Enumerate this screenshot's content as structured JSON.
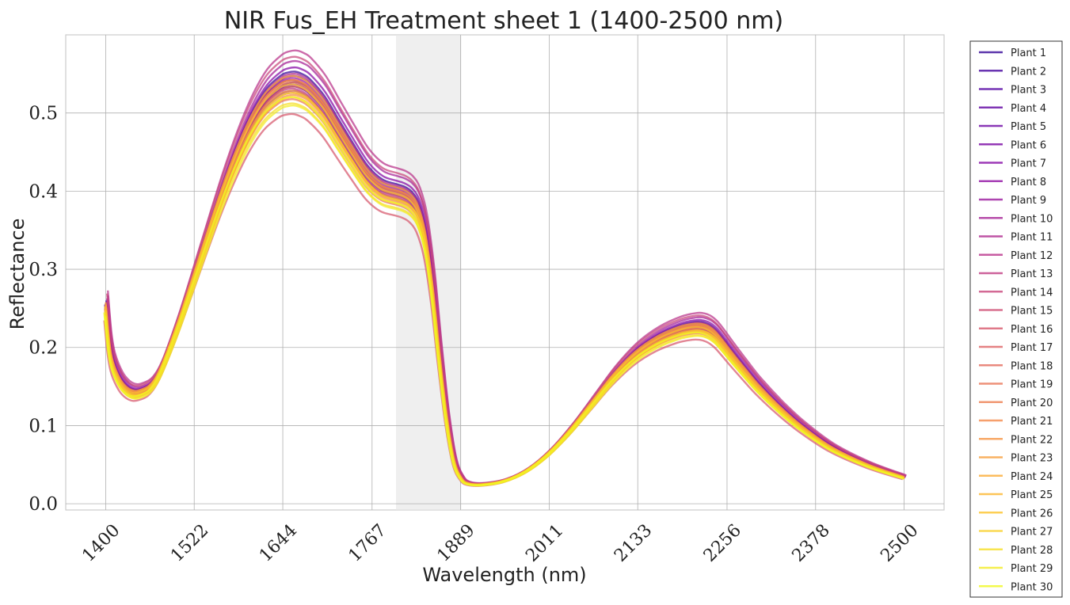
{
  "chart_data": {
    "type": "line",
    "title": "NIR Fus_EH Treatment sheet 1 (1400-2500 nm)",
    "xlabel": "Wavelength (nm)",
    "ylabel": "Reflectance",
    "xlim": [
      1345,
      2555
    ],
    "ylim": [
      -0.008,
      0.6
    ],
    "xticks": [
      1400,
      1522,
      1644,
      1767,
      1889,
      2011,
      2133,
      2256,
      2378,
      2500
    ],
    "xtick_labels": [
      "1400",
      "1522",
      "1644",
      "1767",
      "1889",
      "2011",
      "2133",
      "2256",
      "2378",
      "2500"
    ],
    "yticks": [
      0.0,
      0.1,
      0.2,
      0.3,
      0.4,
      0.5
    ],
    "ytick_labels": [
      "0.0",
      "0.1",
      "0.2",
      "0.3",
      "0.4",
      "0.5"
    ],
    "grid": true,
    "legend_position": "outside-right",
    "shaded_band": [
      1800,
      1890
    ],
    "colormap": "plasma",
    "base_curve": {
      "x": [
        1400,
        1405,
        1410,
        1420,
        1430,
        1440,
        1450,
        1460,
        1470,
        1480,
        1500,
        1520,
        1540,
        1560,
        1580,
        1600,
        1620,
        1640,
        1650,
        1660,
        1670,
        1680,
        1700,
        1720,
        1740,
        1760,
        1780,
        1800,
        1810,
        1820,
        1830,
        1840,
        1850,
        1860,
        1870,
        1880,
        1890,
        1900,
        1920,
        1950,
        1980,
        2010,
        2040,
        2070,
        2100,
        2130,
        2160,
        2190,
        2210,
        2220,
        2230,
        2240,
        2250,
        2260,
        2280,
        2300,
        2330,
        2360,
        2400,
        2450,
        2500
      ],
      "y": [
        0.255,
        0.205,
        0.18,
        0.158,
        0.147,
        0.143,
        0.145,
        0.15,
        0.162,
        0.182,
        0.232,
        0.288,
        0.345,
        0.4,
        0.449,
        0.49,
        0.52,
        0.537,
        0.541,
        0.542,
        0.539,
        0.533,
        0.512,
        0.482,
        0.452,
        0.424,
        0.407,
        0.401,
        0.398,
        0.392,
        0.378,
        0.345,
        0.28,
        0.19,
        0.11,
        0.055,
        0.033,
        0.026,
        0.025,
        0.03,
        0.043,
        0.065,
        0.095,
        0.13,
        0.165,
        0.193,
        0.212,
        0.224,
        0.228,
        0.228,
        0.225,
        0.218,
        0.207,
        0.195,
        0.172,
        0.15,
        0.122,
        0.098,
        0.072,
        0.05,
        0.034
      ]
    },
    "series": [
      {
        "name": "Plant 1",
        "scale": 1.02,
        "dx": 1
      },
      {
        "name": "Plant 2",
        "scale": 0.985,
        "dx": 0
      },
      {
        "name": "Plant 3",
        "scale": 0.995,
        "dx": 2
      },
      {
        "name": "Plant 4",
        "scale": 1.0,
        "dx": -1
      },
      {
        "name": "Plant 5",
        "scale": 1.01,
        "dx": 1
      },
      {
        "name": "Plant 6",
        "scale": 0.975,
        "dx": 0
      },
      {
        "name": "Plant 7",
        "scale": 1.03,
        "dx": 2
      },
      {
        "name": "Plant 8",
        "scale": 0.99,
        "dx": 1
      },
      {
        "name": "Plant 9",
        "scale": 1.005,
        "dx": 0
      },
      {
        "name": "Plant 10",
        "scale": 1.045,
        "dx": 3
      },
      {
        "name": "Plant 11",
        "scale": 1.015,
        "dx": 1
      },
      {
        "name": "Plant 12",
        "scale": 1.07,
        "dx": 3
      },
      {
        "name": "Plant 13",
        "scale": 0.98,
        "dx": -1
      },
      {
        "name": "Plant 14",
        "scale": 1.055,
        "dx": 2
      },
      {
        "name": "Plant 15",
        "scale": 1.0,
        "dx": 0
      },
      {
        "name": "Plant 16",
        "scale": 0.92,
        "dx": -2
      },
      {
        "name": "Plant 17",
        "scale": 0.97,
        "dx": 0
      },
      {
        "name": "Plant 18",
        "scale": 0.985,
        "dx": 1
      },
      {
        "name": "Plant 19",
        "scale": 0.955,
        "dx": -1
      },
      {
        "name": "Plant 20",
        "scale": 0.995,
        "dx": 0
      },
      {
        "name": "Plant 21",
        "scale": 0.965,
        "dx": 1
      },
      {
        "name": "Plant 22",
        "scale": 1.0,
        "dx": 0
      },
      {
        "name": "Plant 23",
        "scale": 0.975,
        "dx": -1
      },
      {
        "name": "Plant 24",
        "scale": 1.01,
        "dx": 0
      },
      {
        "name": "Plant 25",
        "scale": 0.96,
        "dx": 0
      },
      {
        "name": "Plant 26",
        "scale": 0.99,
        "dx": -1
      },
      {
        "name": "Plant 27",
        "scale": 0.97,
        "dx": 0
      },
      {
        "name": "Plant 28",
        "scale": 0.945,
        "dx": -1
      },
      {
        "name": "Plant 29",
        "scale": 0.94,
        "dx": 0
      },
      {
        "name": "Plant 30",
        "scale": 0.96,
        "dx": -2
      }
    ]
  }
}
